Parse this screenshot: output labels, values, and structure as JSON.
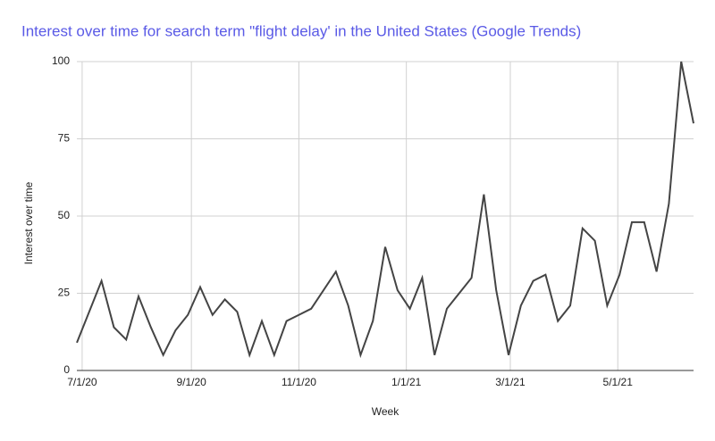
{
  "chart_data": {
    "type": "line",
    "title": "Interest over time for search term \"flight delay' in the United States (Google Trends)",
    "x_label": "Week",
    "y_label": "Interest over time",
    "x": [
      "6/28/20",
      "7/5/20",
      "7/12/20",
      "7/19/20",
      "7/26/20",
      "8/2/20",
      "8/9/20",
      "8/16/20",
      "8/23/20",
      "8/30/20",
      "9/6/20",
      "9/13/20",
      "9/20/20",
      "9/27/20",
      "10/4/20",
      "10/11/20",
      "10/18/20",
      "10/25/20",
      "11/1/20",
      "11/8/20",
      "11/15/20",
      "11/22/20",
      "11/29/20",
      "12/6/20",
      "12/13/20",
      "12/20/20",
      "12/27/20",
      "1/3/21",
      "1/10/21",
      "1/17/21",
      "1/24/21",
      "1/31/21",
      "2/7/21",
      "2/14/21",
      "2/21/21",
      "2/28/21",
      "3/7/21",
      "3/14/21",
      "3/21/21",
      "3/28/21",
      "4/4/21",
      "4/11/21",
      "4/18/21",
      "4/25/21",
      "5/2/21",
      "5/9/21",
      "5/16/21",
      "5/23/21",
      "5/30/21",
      "6/6/21",
      "6/13/21"
    ],
    "series": [
      {
        "name": "Interest over time",
        "color": "#444444",
        "values": [
          9,
          19,
          29,
          14,
          10,
          24,
          14,
          5,
          13,
          18,
          27,
          18,
          23,
          19,
          5,
          16,
          5,
          16,
          18,
          20,
          26,
          32,
          21,
          5,
          16,
          40,
          26,
          20,
          30,
          5,
          20,
          25,
          30,
          57,
          26,
          5,
          21,
          29,
          31,
          16,
          21,
          46,
          42,
          21,
          31,
          48,
          48,
          32,
          54,
          100,
          80
        ]
      }
    ],
    "xlim": [
      "6/28/20",
      "6/13/21"
    ],
    "xticks": [
      "7/1/20",
      "9/1/20",
      "11/1/20",
      "1/1/21",
      "3/1/21",
      "5/1/21"
    ],
    "ylim": [
      0,
      100
    ],
    "yticks": [
      0,
      25,
      50,
      75,
      100
    ],
    "grid": true
  }
}
